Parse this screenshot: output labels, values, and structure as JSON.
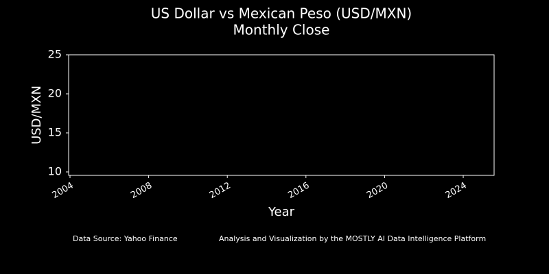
{
  "chart_data": {
    "type": "line",
    "title": "US Dollar vs Mexican Peso (USD/MXN)",
    "subtitle": "Monthly Close",
    "x_label": "Year",
    "y_label": "USD/MXN",
    "xlim": [
      2003.93,
      2025.57
    ],
    "xticks": [
      2004,
      2008,
      2012,
      2016,
      2020,
      2024
    ],
    "ylim": [
      9.56,
      25
    ],
    "yticks": [
      10,
      15,
      20,
      25
    ],
    "grid": false,
    "footer_left": "Data Source: Yahoo Finance",
    "footer_right": "Analysis and Visualization by the MOSTLY AI Data Intelligence Platform"
  }
}
